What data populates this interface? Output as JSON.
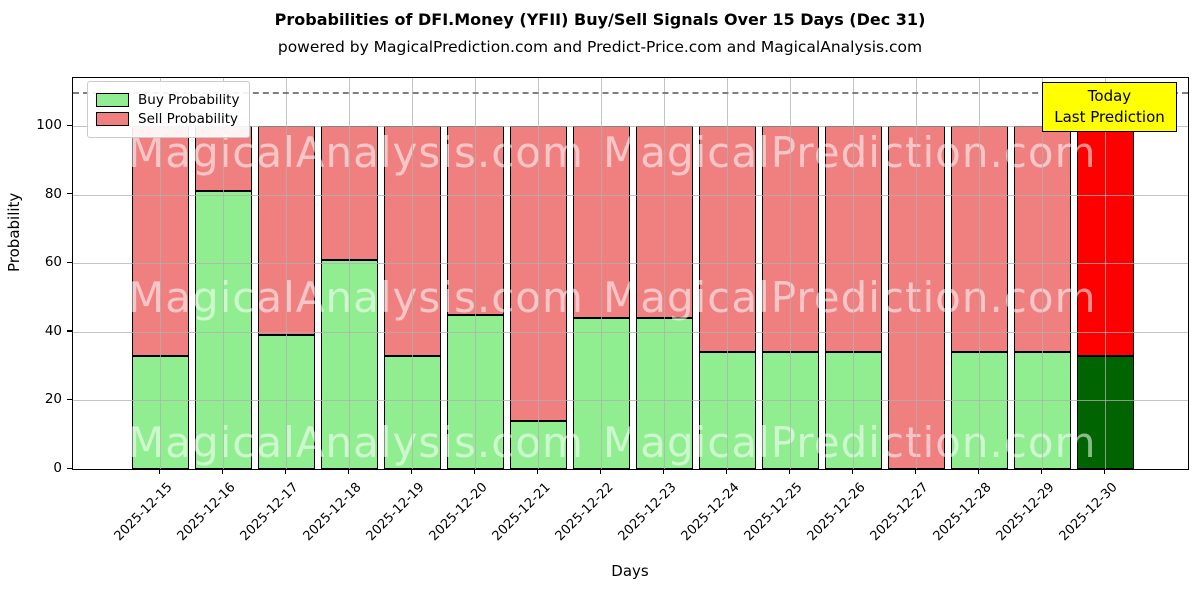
{
  "title": "Probabilities of DFI.Money (YFII) Buy/Sell Signals Over 15 Days (Dec 31)",
  "subtitle": "powered by MagicalPrediction.com and Predict-Price.com and MagicalAnalysis.com",
  "legend": {
    "buy_label": "Buy Probability",
    "sell_label": "Sell Probability"
  },
  "annotation": {
    "line1": "Today",
    "line2": "Last Prediction",
    "background": "#ffff00"
  },
  "axes": {
    "ylabel": "Probability",
    "xlabel": "Days",
    "yticks": [
      0,
      20,
      40,
      60,
      80,
      100
    ],
    "ylim": [
      0,
      114
    ],
    "threshold_value": 110
  },
  "watermarks": [
    "MagicalAnalysis.com",
    "MagicalPrediction.com"
  ],
  "colors": {
    "buy": "#90EE90",
    "sell": "#F08080",
    "today_buy": "#006400",
    "today_sell": "#FF0000",
    "bar_edge": "#000000",
    "grid": "#b0b0b0",
    "threshold": "#7f7f7f"
  },
  "chart_data": {
    "type": "bar",
    "stacked": true,
    "title": "Probabilities of DFI.Money (YFII) Buy/Sell Signals Over 15 Days (Dec 31)",
    "xlabel": "Days",
    "ylabel": "Probability",
    "ylim": [
      0,
      114
    ],
    "grid": true,
    "legend_position": "upper left",
    "categories": [
      "2025-12-15",
      "2025-12-16",
      "2025-12-17",
      "2025-12-18",
      "2025-12-19",
      "2025-12-20",
      "2025-12-21",
      "2025-12-22",
      "2025-12-23",
      "2025-12-24",
      "2025-12-25",
      "2025-12-26",
      "2025-12-27",
      "2025-12-28",
      "2025-12-29",
      "2025-12-30"
    ],
    "series": [
      {
        "name": "Buy Probability",
        "color": "#90EE90",
        "values": [
          33,
          81,
          39,
          61,
          33,
          45,
          14,
          44,
          44,
          34,
          34,
          34,
          0,
          34,
          34,
          33
        ]
      },
      {
        "name": "Sell Probability",
        "color": "#F08080",
        "values": [
          67,
          19,
          61,
          39,
          67,
          55,
          86,
          56,
          56,
          66,
          66,
          66,
          100,
          66,
          66,
          67
        ]
      }
    ],
    "today_index": 15,
    "today_series_colors": {
      "Buy Probability": "#006400",
      "Sell Probability": "#FF0000"
    },
    "threshold_line": {
      "value": 110,
      "style": "dashed",
      "color": "#7f7f7f"
    }
  }
}
